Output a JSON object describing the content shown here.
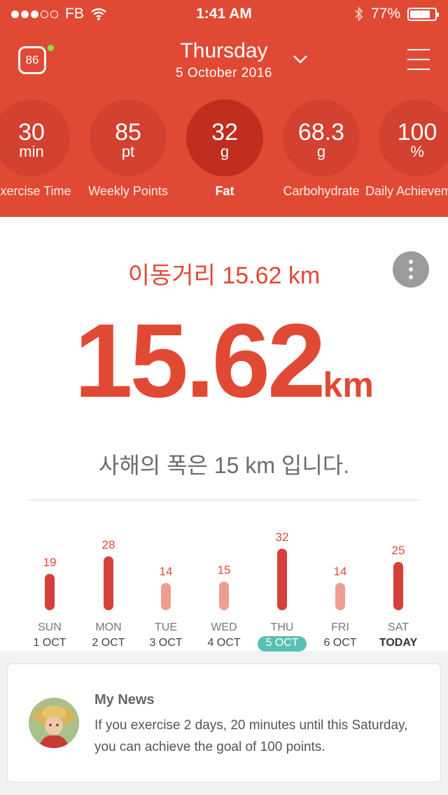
{
  "status_bar": {
    "carrier": "FB",
    "time": "1:41 AM",
    "battery": "77%"
  },
  "header": {
    "badge": "86",
    "day": "Thursday",
    "date": "5 October 2016"
  },
  "metrics": [
    {
      "value": "30",
      "unit": "min",
      "label": "Exercise Time"
    },
    {
      "value": "85",
      "unit": "pt",
      "label": "Weekly Points"
    },
    {
      "value": "32",
      "unit": "g",
      "label": "Fat"
    },
    {
      "value": "68.3",
      "unit": "g",
      "label": "Carbohydrate"
    },
    {
      "value": "100",
      "unit": "%",
      "label": "Daily Achievement"
    }
  ],
  "main": {
    "subtitle": "이동거리 15.62 km",
    "distance_value": "15.62",
    "distance_unit": "km",
    "description": "사해의 폭은 15 km 입니다."
  },
  "chart_data": {
    "type": "bar",
    "categories": [
      "SUN",
      "MON",
      "TUE",
      "WED",
      "THU",
      "FRI",
      "SAT"
    ],
    "dates": [
      "1 OCT",
      "2 OCT",
      "3 OCT",
      "4 OCT",
      "5 OCT",
      "6 OCT",
      "TODAY"
    ],
    "values": [
      19,
      28,
      14,
      15,
      32,
      14,
      25
    ],
    "selected_index": 4,
    "colors": {
      "high": "#d6403a",
      "low": "#ee9e90",
      "selected_pill": "#5bbfb5"
    }
  },
  "news": {
    "title": "My News",
    "body": "If you exercise 2 days, 20 minutes until this Saturday, you can achieve the goal of 100 points."
  }
}
